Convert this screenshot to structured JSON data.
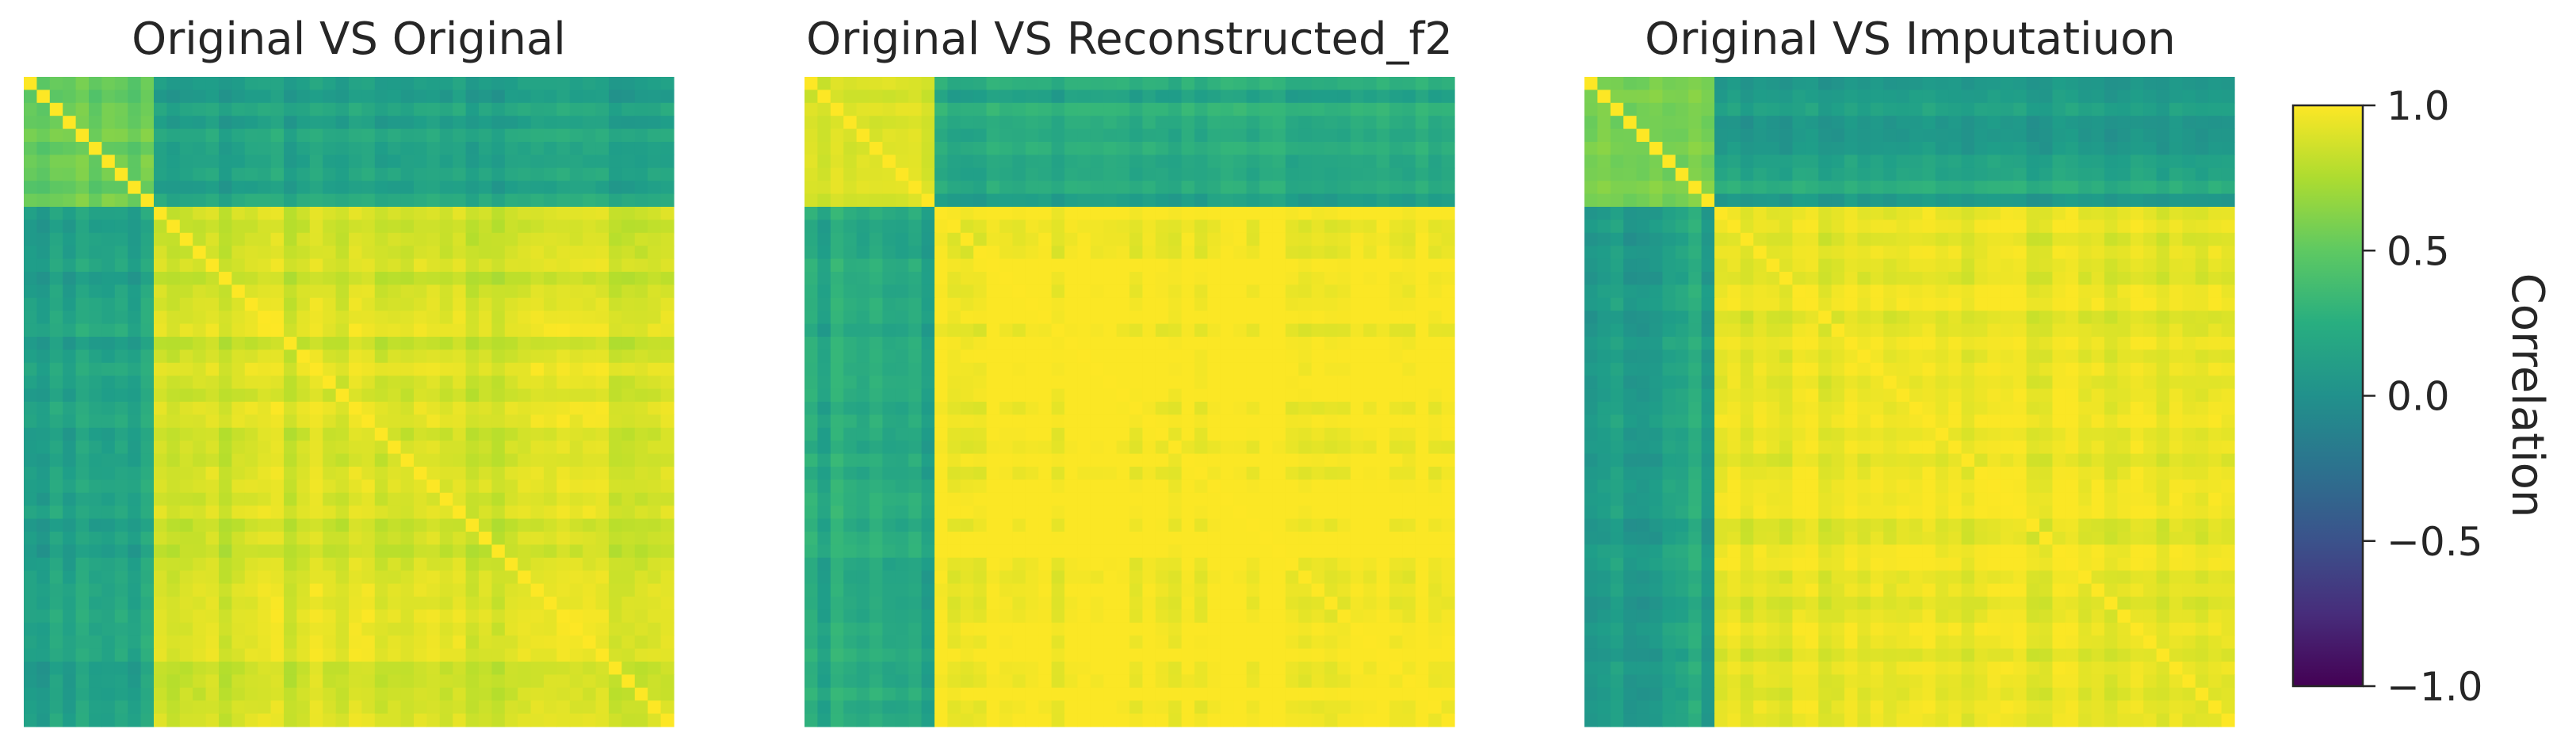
{
  "chart_data": [
    {
      "type": "heatmap",
      "title": "Original VS Original",
      "n": 50,
      "blocks": [
        10,
        40
      ],
      "within_small": 0.55,
      "within_large": 0.87,
      "cross": 0.22,
      "diagonal": 1.0,
      "noise": 0.06
    },
    {
      "type": "heatmap",
      "title": "Original VS Reconstructed_f2",
      "n": 50,
      "blocks": [
        10,
        40
      ],
      "within_small": 0.9,
      "within_large": 0.99,
      "cross": 0.32,
      "diagonal": 1.0,
      "noise": 0.05
    },
    {
      "type": "heatmap",
      "title": "Original VS Imputatiuon",
      "n": 50,
      "blocks": [
        10,
        40
      ],
      "within_small": 0.62,
      "within_large": 0.93,
      "cross": 0.24,
      "diagonal": 1.0,
      "noise": 0.05
    }
  ],
  "colorbar": {
    "label": "Correlation",
    "vmin": -1.0,
    "vmax": 1.0,
    "ticks": [
      1.0,
      0.5,
      0.0,
      -0.5,
      -1.0
    ],
    "tick_labels": [
      "1.0",
      "0.5",
      "0.0",
      "−0.5",
      "−1.0"
    ],
    "colormap": "viridis"
  }
}
